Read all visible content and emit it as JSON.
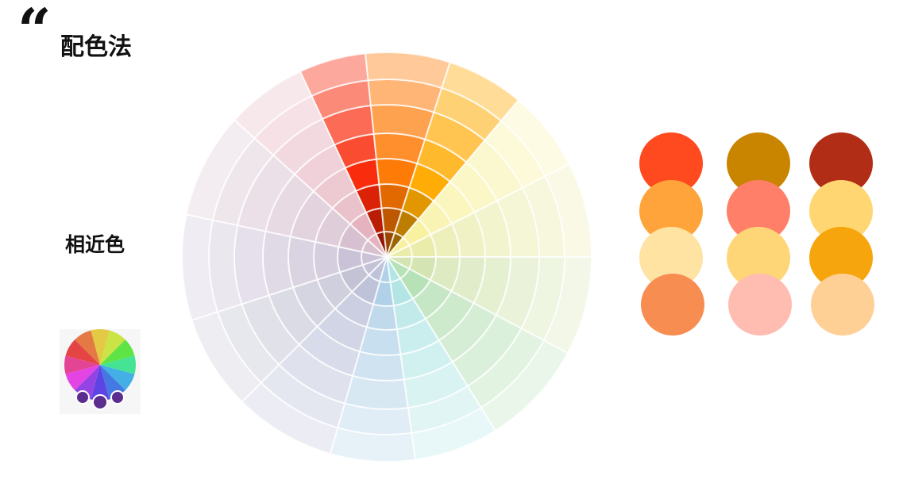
{
  "header": {
    "quote_mark": "“",
    "title": "配色法"
  },
  "section": {
    "label": "相近色"
  },
  "legend_icon": {
    "name": "color-wheel-icon",
    "highlight_color": "#5B2D8E"
  },
  "color_wheel": {
    "highlighted_hues": [
      "red-orange",
      "orange",
      "yellow-orange"
    ]
  },
  "palette": {
    "columns": [
      [
        "#FF4A20",
        "#FFA43A",
        "#FFE3A3",
        "#F88D52"
      ],
      [
        "#C98400",
        "#FF7F68",
        "#FFD677",
        "#FFBCB1"
      ],
      [
        "#B22D16",
        "#FFD672",
        "#F7A50C",
        "#FFD095"
      ]
    ]
  }
}
